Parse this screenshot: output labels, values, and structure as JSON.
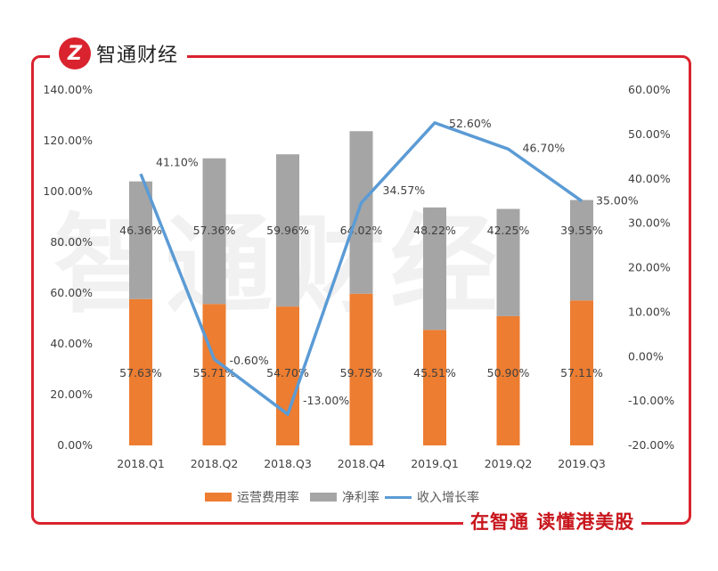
{
  "brand": {
    "logo_text": "Z",
    "name": "智通财经",
    "slogan": "在智通 读懂港美股",
    "watermark": "智通财经"
  },
  "chart_data": {
    "type": "bar",
    "stacked": true,
    "categories": [
      "2018.Q1",
      "2018.Q2",
      "2018.Q3",
      "2018.Q4",
      "2019.Q1",
      "2019.Q2",
      "2019.Q3"
    ],
    "series": [
      {
        "name": "运营费用率",
        "type": "bar",
        "axis": "left",
        "color": "#ed7d31",
        "values": [
          57.63,
          55.71,
          54.7,
          59.75,
          45.51,
          50.9,
          57.11
        ]
      },
      {
        "name": "净利率",
        "type": "bar",
        "axis": "left",
        "color": "#a5a5a5",
        "values": [
          46.36,
          57.36,
          59.96,
          64.02,
          48.22,
          42.25,
          39.55
        ]
      },
      {
        "name": "收入增长率",
        "type": "line",
        "axis": "right",
        "color": "#5b9bd5",
        "values": [
          41.1,
          -0.6,
          -13.0,
          34.57,
          52.6,
          46.7,
          35.0
        ]
      }
    ],
    "left_axis": {
      "ylim": [
        0,
        140
      ],
      "ticks": [
        "0.00%",
        "20.00%",
        "40.00%",
        "60.00%",
        "80.00%",
        "100.00%",
        "120.00%",
        "140.00%"
      ]
    },
    "right_axis": {
      "ylim": [
        -20,
        60
      ],
      "ticks": [
        "-20.00%",
        "-10.00%",
        "0.00%",
        "10.00%",
        "20.00%",
        "30.00%",
        "40.00%",
        "50.00%",
        "60.00%"
      ]
    },
    "grid": false,
    "legend": "bottom"
  }
}
